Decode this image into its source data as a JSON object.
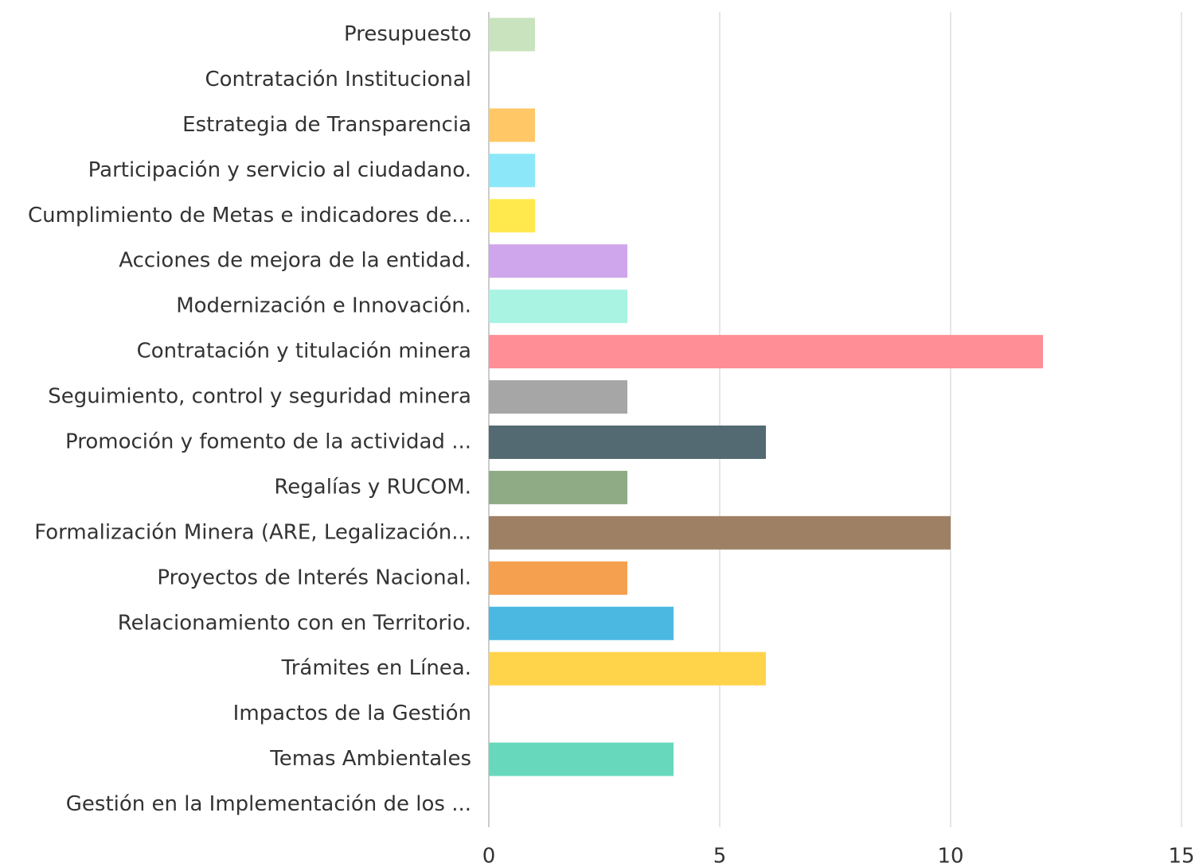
{
  "chart_data": {
    "type": "barh",
    "categories": [
      "Presupuesto",
      "Contratación Institucional",
      "Estrategia de Transparencia",
      "Participación y servicio al ciudadano.",
      "Cumplimiento de Metas e indicadores de...",
      "Acciones de mejora de la entidad.",
      "Modernización e Innovación.",
      "Contratación y titulación minera",
      "Seguimiento, control y seguridad minera",
      "Promoción y fomento de la actividad ...",
      "Regalías y RUCOM.",
      "Formalización Minera (ARE, Legalización...",
      "Proyectos de Interés Nacional.",
      "Relacionamiento con en Territorio.",
      "Trámites en Línea.",
      "Impactos de la Gestión",
      "Temas Ambientales",
      "Gestión en la Implementación de los ..."
    ],
    "values": [
      1,
      0,
      1,
      1,
      1,
      3,
      3,
      12,
      3,
      6,
      3,
      10,
      3,
      4,
      6,
      0,
      4,
      0
    ],
    "colors": [
      "#c8e3bd",
      "#cccccc",
      "#ffc766",
      "#8ce8f8",
      "#ffe94d",
      "#cfa5eb",
      "#a8f3e2",
      "#ff8e97",
      "#a6a6a6",
      "#536a73",
      "#8fab85",
      "#9e8065",
      "#f5a04f",
      "#4bb8e2",
      "#ffd44a",
      "#cccccc",
      "#68d8bd",
      "#cccccc"
    ],
    "xlim": [
      0,
      15
    ],
    "xticks": [
      0,
      5,
      10,
      15
    ],
    "grid": true
  }
}
